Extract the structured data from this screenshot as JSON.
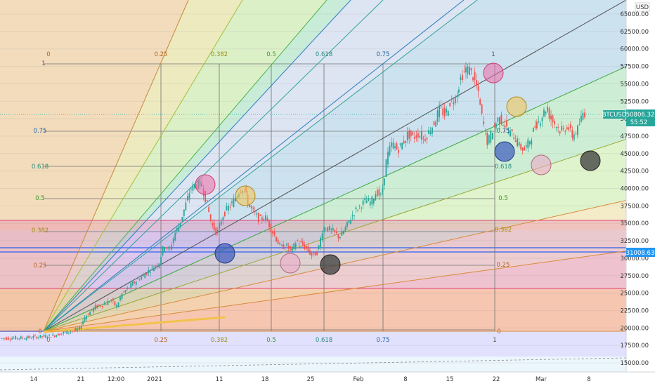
{
  "symbol": "BTCUSD",
  "currency": "USD",
  "last_price": "50806.32",
  "countdown": "55:52",
  "marker_price": "31008.63",
  "colors": {
    "up_candle": "#26a69a",
    "down_candle": "#ef5350",
    "price_tag_bg": "#26a69a",
    "marker_tag_bg": "#2196f3"
  },
  "chart_data": {
    "type": "candlestick",
    "title": "",
    "ylim": [
      13500,
      67000
    ],
    "y_ticks": [
      15000,
      17500,
      20000,
      22500,
      25000,
      27500,
      30000,
      32500,
      35000,
      37500,
      40000,
      42500,
      45000,
      47500,
      50000,
      52500,
      55000,
      57500,
      60000,
      62500,
      65000
    ],
    "y_tick_labels": [
      "15000.00",
      "17500.00",
      "20000.00",
      "22500.00",
      "25000.00",
      "27500.00",
      "30000.00",
      "32500.00",
      "35000.00",
      "37500.00",
      "40000.00",
      "42500.00",
      "45000.00",
      "47500.00",
      "50000.00",
      "52500.00",
      "55000.00",
      "57500.00",
      "60000.00",
      "62500.00",
      "65000.00"
    ],
    "x_ticks": [
      "14",
      "21",
      "12:00",
      "2021",
      "11",
      "18",
      "25",
      "Feb",
      "8",
      "15",
      "22",
      "Mar",
      "8"
    ],
    "price_path": [
      [
        0,
        18500
      ],
      [
        5,
        18600
      ],
      [
        10,
        18900
      ],
      [
        12,
        19300
      ],
      [
        15,
        19800
      ],
      [
        16,
        21500
      ],
      [
        18,
        23000
      ],
      [
        20,
        23500
      ],
      [
        21,
        24000
      ],
      [
        22,
        23000
      ],
      [
        23,
        24800
      ],
      [
        25,
        26300
      ],
      [
        27,
        27500
      ],
      [
        29,
        28700
      ],
      [
        30,
        29200
      ],
      [
        31,
        32000
      ],
      [
        32,
        31000
      ],
      [
        33,
        33500
      ],
      [
        34,
        35000
      ],
      [
        35,
        37500
      ],
      [
        36,
        40000
      ],
      [
        37,
        40500
      ],
      [
        38,
        40700
      ],
      [
        39,
        38000
      ],
      [
        40,
        34800
      ],
      [
        41,
        33500
      ],
      [
        42,
        36000
      ],
      [
        43,
        37200
      ],
      [
        44,
        38000
      ],
      [
        45,
        39500
      ],
      [
        46,
        40200
      ],
      [
        47,
        37500
      ],
      [
        48,
        36500
      ],
      [
        49,
        35500
      ],
      [
        50,
        36000
      ],
      [
        51,
        34500
      ],
      [
        52,
        33000
      ],
      [
        53,
        31500
      ],
      [
        54,
        31900
      ],
      [
        55,
        31000
      ],
      [
        56,
        32500
      ],
      [
        57,
        32000
      ],
      [
        58,
        31200
      ],
      [
        59,
        30300
      ],
      [
        60,
        31000
      ],
      [
        61,
        34500
      ],
      [
        62,
        34200
      ],
      [
        63,
        33800
      ],
      [
        64,
        33000
      ],
      [
        65,
        34000
      ],
      [
        66,
        35500
      ],
      [
        67,
        36800
      ],
      [
        68,
        37500
      ],
      [
        69,
        38300
      ],
      [
        70,
        38000
      ],
      [
        71,
        39500
      ],
      [
        72,
        38800
      ],
      [
        73,
        44500
      ],
      [
        74,
        46500
      ],
      [
        75,
        45500
      ],
      [
        76,
        46500
      ],
      [
        77,
        47800
      ],
      [
        78,
        47300
      ],
      [
        79,
        47900
      ],
      [
        80,
        47000
      ],
      [
        81,
        48200
      ],
      [
        82,
        49500
      ],
      [
        83,
        51500
      ],
      [
        84,
        50500
      ],
      [
        85,
        52500
      ],
      [
        86,
        53000
      ],
      [
        87,
        56000
      ],
      [
        88,
        57200
      ],
      [
        89,
        56500
      ],
      [
        90,
        54500
      ],
      [
        91,
        50000
      ],
      [
        92,
        46500
      ],
      [
        93,
        48500
      ],
      [
        94,
        50000
      ],
      [
        95,
        49500
      ],
      [
        96,
        48000
      ],
      [
        97,
        47500
      ],
      [
        98,
        46000
      ],
      [
        99,
        45500
      ],
      [
        100,
        47000
      ],
      [
        101,
        49000
      ],
      [
        102,
        50000
      ],
      [
        103,
        51500
      ],
      [
        104,
        50000
      ],
      [
        105,
        49000
      ],
      [
        106,
        48000
      ],
      [
        107,
        49000
      ],
      [
        108,
        47500
      ],
      [
        109,
        48500
      ],
      [
        110,
        50806
      ]
    ],
    "fib_levels_left": [
      "0",
      "0.25",
      "0.382",
      "0.5",
      "0.618",
      "0.75",
      "1"
    ],
    "fib_levels_top": [
      "0",
      "0.25",
      "0.382",
      "0.5",
      "0.618",
      "0.75",
      "1"
    ],
    "fib_levels_bottom": [
      "0",
      "0.25",
      "0.382",
      "0.5",
      "0.618",
      "0.75",
      "1"
    ],
    "fib_levels_right": [
      "0.25",
      "0.382",
      "0.5",
      "0.618",
      "0.75"
    ]
  }
}
